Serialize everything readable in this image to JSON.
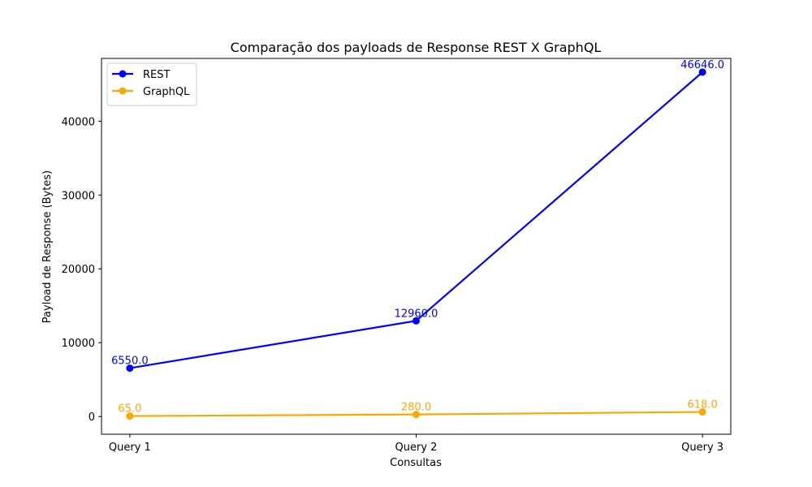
{
  "chart_data": {
    "type": "line",
    "title": "Comparação dos payloads de Response REST X GraphQL",
    "xlabel": "Consultas",
    "ylabel": "Payload de Response (Bytes)",
    "categories": [
      "Query 1",
      "Query 2",
      "Query 3"
    ],
    "ylim": [
      -2400,
      48500
    ],
    "yticks": [
      0,
      10000,
      20000,
      30000,
      40000
    ],
    "grid": false,
    "legend_position": "top-left",
    "series": [
      {
        "name": "REST",
        "color": "#0000ff",
        "values": [
          6550.0,
          12960.0,
          46646.0
        ],
        "labels": [
          "6550.0",
          "12960.0",
          "46646.0"
        ]
      },
      {
        "name": "GraphQL",
        "color": "#ffa500",
        "values": [
          65.0,
          280.0,
          618.0
        ],
        "labels": [
          "65.0",
          "280.0",
          "618.0"
        ]
      }
    ]
  }
}
